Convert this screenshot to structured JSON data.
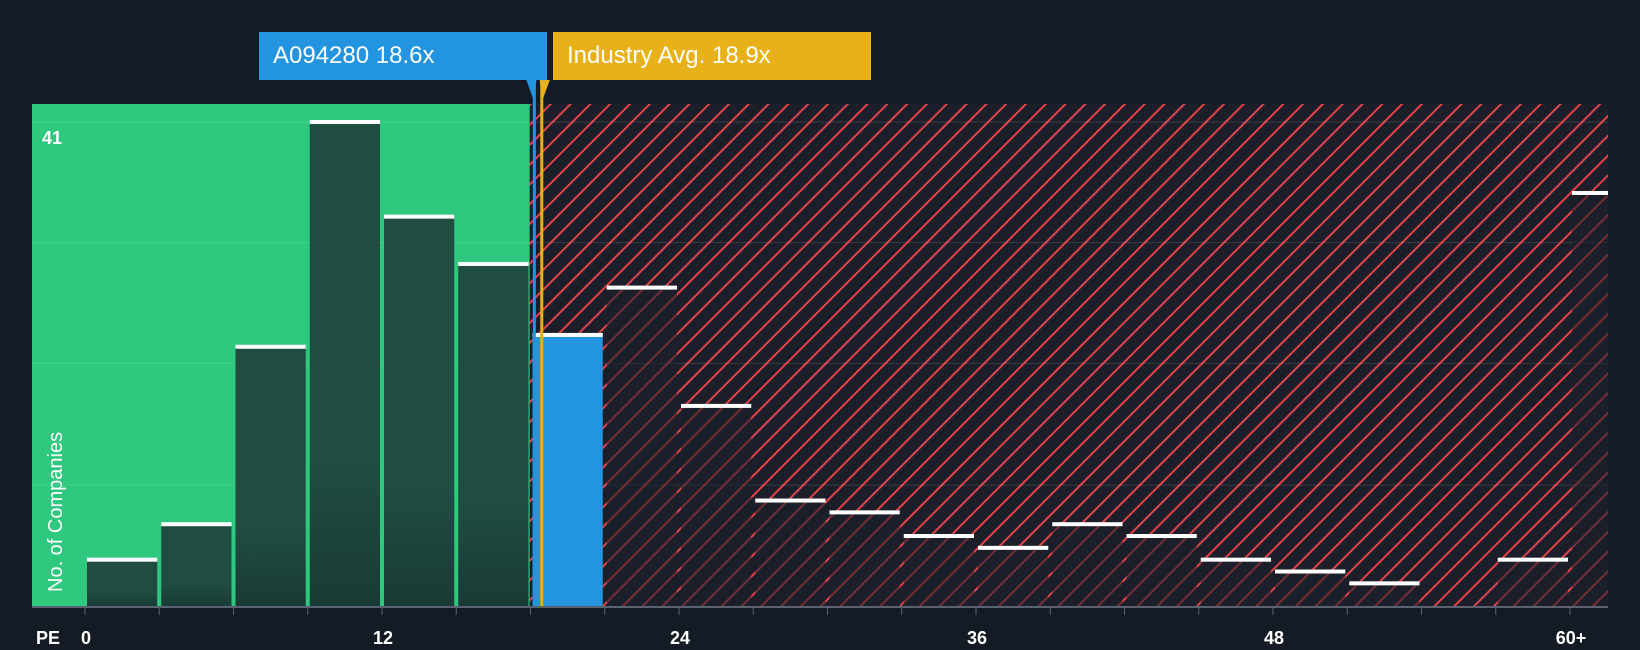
{
  "colors": {
    "background": "#151b24",
    "fair_zone": "#2ec97e",
    "expensive_zone": "#e3424a",
    "bar_fair": "#1e4b41",
    "bar_expensive": "#1b1f2a",
    "company_bar": "#2394e0",
    "industry_marker": "#e8b118",
    "bar_cap": "#ffffff"
  },
  "chart_data": {
    "type": "bar",
    "title": "",
    "xlabel": "PE",
    "ylabel": "No. of Companies",
    "x_ticks": [
      "0",
      "12",
      "24",
      "36",
      "48",
      "60+"
    ],
    "y_ticks": [
      "41"
    ],
    "ylim": [
      0,
      41
    ],
    "bin_width": 3,
    "fair_value_threshold": 18.9,
    "bins_start": [
      0,
      3,
      6,
      9,
      12,
      15,
      18,
      21,
      24,
      27,
      30,
      33,
      36,
      39,
      42,
      45,
      48,
      51,
      54,
      57,
      60
    ],
    "values": [
      4,
      7,
      22,
      41,
      33,
      29,
      23,
      27,
      17,
      9,
      8,
      6,
      5,
      7,
      6,
      4,
      3,
      2,
      0,
      4,
      35
    ],
    "highlight_bin_index": 6,
    "company": {
      "label": "A094280 18.6x",
      "value": 18.6
    },
    "industry_avg": {
      "label": "Industry Avg. 18.9x",
      "value": 18.9
    },
    "grid": true,
    "gridlines": [
      10.3,
      20.6,
      30.8,
      41
    ]
  }
}
